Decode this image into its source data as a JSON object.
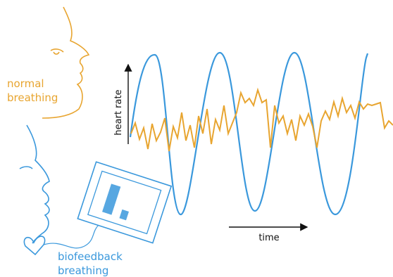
{
  "normal_label": {
    "lines": [
      "normal",
      "breathing"
    ]
  },
  "biofeedback_label": {
    "lines": [
      "biofeedback",
      "breathing"
    ]
  },
  "y_axis_label": "heart rate",
  "x_axis_label": "time"
}
